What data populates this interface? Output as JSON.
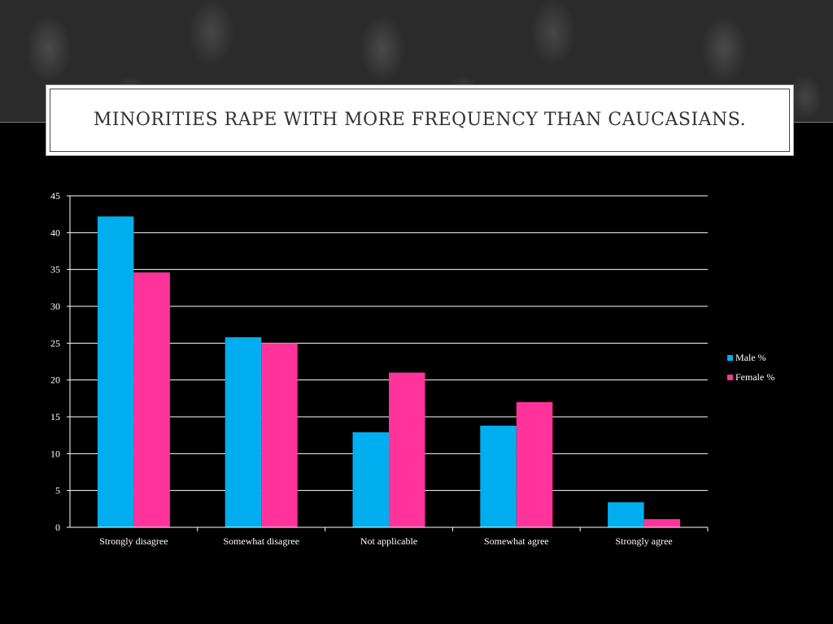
{
  "slide": {
    "title": "Minorities rape with more frequency than Caucasians."
  },
  "chart_data": {
    "type": "bar",
    "categories": [
      "Strongly disagree",
      "Somewhat disagree",
      "Not applicable",
      "Somewhat agree",
      "Strongly agree"
    ],
    "series": [
      {
        "name": "Male %",
        "values": [
          42.2,
          25.8,
          12.9,
          13.8,
          3.4
        ],
        "color": "#00AEEF"
      },
      {
        "name": "Female %",
        "values": [
          34.6,
          25.0,
          21.0,
          17.0,
          1.1
        ],
        "color": "#FF3399"
      }
    ],
    "ylim": [
      0,
      45
    ],
    "yticks": [
      0,
      5,
      10,
      15,
      20,
      25,
      30,
      35,
      40,
      45
    ],
    "grid": true,
    "legend_position": "right"
  }
}
